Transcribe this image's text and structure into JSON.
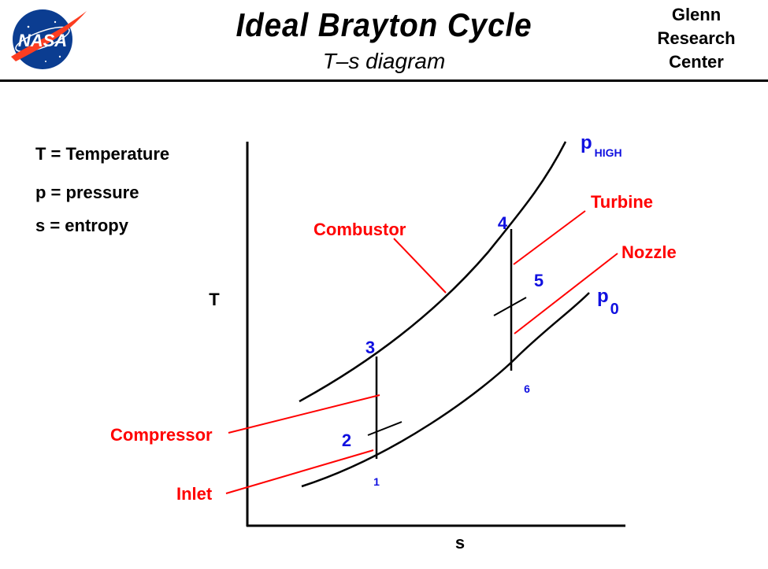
{
  "header": {
    "title": "Ideal Brayton Cycle",
    "subtitle": "T–s diagram",
    "logo_text": "NASA",
    "org_line1": "Glenn",
    "org_line2": "Research",
    "org_line3": "Center"
  },
  "legend": {
    "t_def": "T = Temperature",
    "p_def": "p = pressure",
    "s_def": "s = entropy"
  },
  "axes": {
    "y_label": "T",
    "x_label": "s"
  },
  "curves": {
    "high": {
      "label": "p",
      "subscript": "HIGH"
    },
    "low": {
      "label": "p",
      "subscript": "0"
    }
  },
  "stations": {
    "s1": "1",
    "s2": "2",
    "s3": "3",
    "s4": "4",
    "s5": "5",
    "s6": "6"
  },
  "components": {
    "combustor": "Combustor",
    "turbine": "Turbine",
    "nozzle": "Nozzle",
    "compressor": "Compressor",
    "inlet": "Inlet"
  },
  "colors": {
    "component_label": "#ff0000",
    "station_label": "#1010e0",
    "lines": "#000000"
  }
}
